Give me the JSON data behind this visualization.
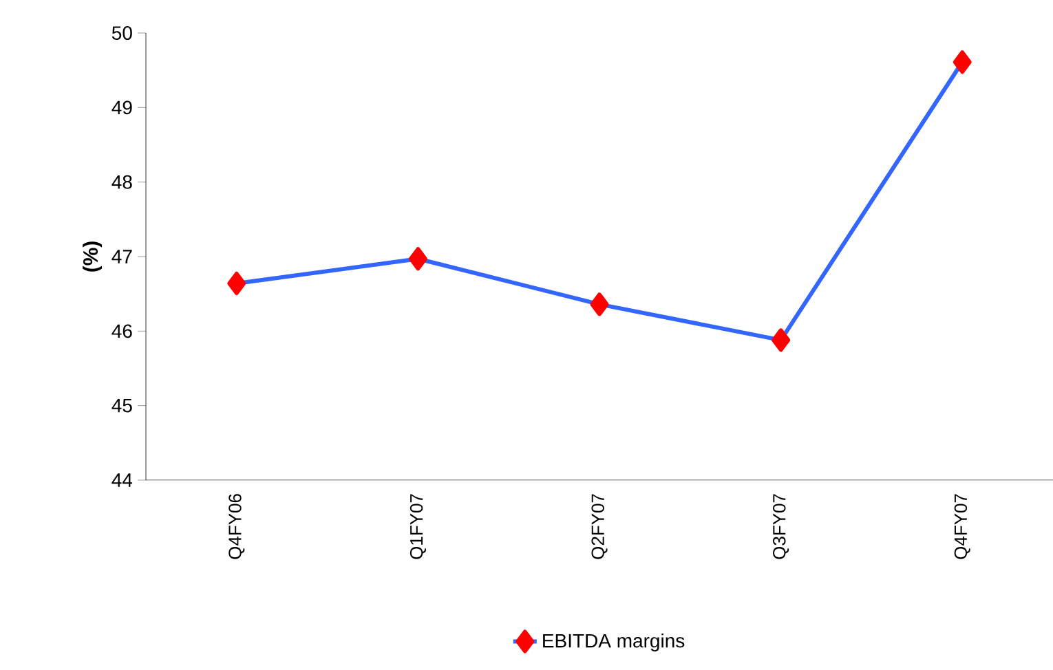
{
  "chart_data": {
    "type": "line",
    "ylabel": "(%)",
    "categories": [
      "Q4FY06",
      "Q1FY07",
      "Q2FY07",
      "Q3FY07",
      "Q4FY07"
    ],
    "series": [
      {
        "name": "EBITDA margins",
        "color": "#3366ff",
        "values": [
          46.64,
          46.97,
          46.36,
          45.88,
          49.61
        ]
      }
    ],
    "ylim": [
      44,
      50
    ],
    "yticks": [
      44,
      45,
      46,
      47,
      48,
      49,
      50
    ],
    "grid": false,
    "legend": "bottom",
    "marker": "diamond",
    "line_style": "solid"
  }
}
